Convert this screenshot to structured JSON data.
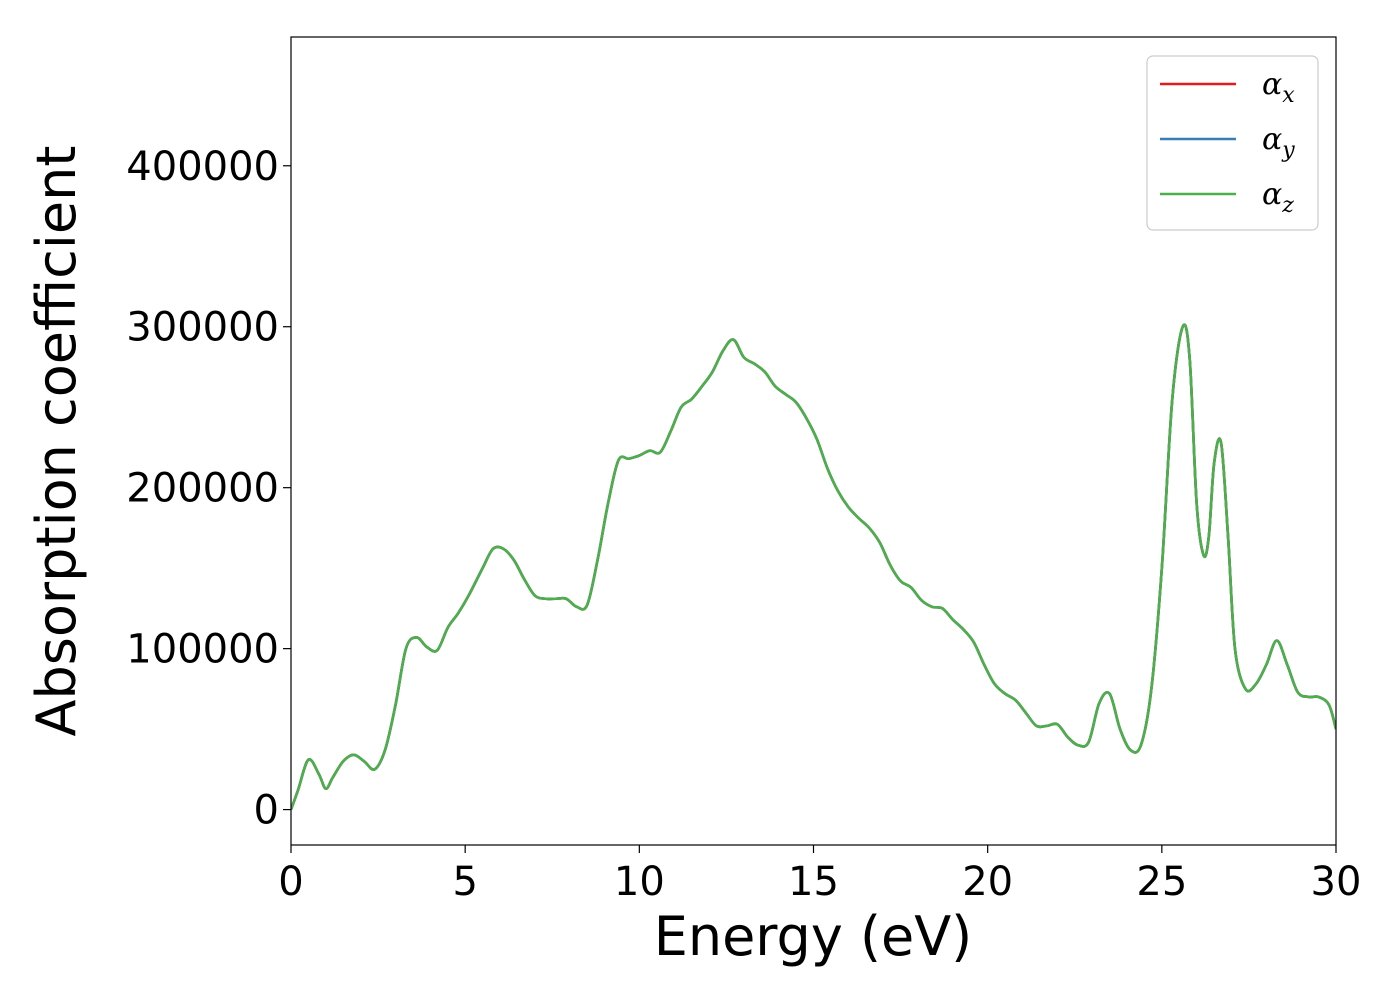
{
  "chart_data": {
    "type": "line",
    "title": "",
    "xlabel": "Energy (eV)",
    "ylabel": "Absorption coefficient",
    "xlim": [
      0,
      30
    ],
    "ylim": [
      -22000,
      480000
    ],
    "xticks": [
      0,
      5,
      10,
      15,
      20,
      25,
      30
    ],
    "yticks": [
      0,
      100000,
      200000,
      300000,
      400000
    ],
    "grid": false,
    "legend_position": "top-right",
    "series": [
      {
        "name": "α",
        "name_subscript": "x",
        "color": "#e41a1c",
        "x": [
          0,
          0.2,
          0.5,
          0.8,
          1.0,
          1.2,
          1.5,
          1.8,
          2.1,
          2.4,
          2.7,
          3.0,
          3.3,
          3.6,
          3.9,
          4.2,
          4.5,
          4.8,
          5.1,
          5.5,
          5.8,
          6.1,
          6.4,
          6.7,
          7.0,
          7.3,
          7.6,
          7.9,
          8.2,
          8.5,
          8.8,
          9.1,
          9.4,
          9.7,
          10.0,
          10.3,
          10.6,
          10.9,
          11.2,
          11.5,
          11.8,
          12.1,
          12.4,
          12.7,
          13.0,
          13.3,
          13.6,
          13.9,
          14.2,
          14.5,
          14.8,
          15.1,
          15.4,
          15.7,
          16.0,
          16.3,
          16.6,
          16.9,
          17.2,
          17.5,
          17.8,
          18.1,
          18.4,
          18.7,
          19.0,
          19.3,
          19.6,
          19.9,
          20.2,
          20.5,
          20.8,
          21.1,
          21.4,
          21.7,
          22.0,
          22.3,
          22.6,
          22.9,
          23.2,
          23.5,
          23.8,
          24.1,
          24.4,
          24.7,
          25.0,
          25.3,
          25.6,
          25.8,
          26.0,
          26.2,
          26.35,
          26.5,
          26.7,
          26.9,
          27.1,
          27.4,
          27.7,
          28.0,
          28.3,
          28.6,
          28.9,
          29.2,
          29.5,
          29.8,
          30.0
        ],
        "values": [
          0,
          12000,
          31000,
          22000,
          13000,
          20000,
          30000,
          34000,
          30000,
          25000,
          37000,
          65000,
          100000,
          107000,
          101000,
          99000,
          113000,
          122000,
          133000,
          150000,
          162000,
          162000,
          155000,
          143000,
          133000,
          131000,
          131000,
          131000,
          126000,
          127000,
          155000,
          190000,
          217000,
          218000,
          220000,
          223000,
          222000,
          235000,
          250000,
          255000,
          263000,
          272000,
          285000,
          292000,
          281000,
          277000,
          272000,
          263000,
          258000,
          253000,
          243000,
          230000,
          212000,
          198000,
          188000,
          181000,
          175000,
          166000,
          152000,
          142000,
          138000,
          130000,
          126000,
          125000,
          118000,
          112000,
          104000,
          90000,
          78000,
          72000,
          68000,
          60000,
          52000,
          52000,
          53000,
          45000,
          40000,
          42000,
          66000,
          72000,
          50000,
          37000,
          40000,
          75000,
          150000,
          255000,
          300000,
          280000,
          190000,
          158000,
          170000,
          215000,
          228000,
          170000,
          100000,
          75000,
          78000,
          90000,
          105000,
          90000,
          73000,
          70000,
          70000,
          65000,
          50000
        ]
      },
      {
        "name": "α",
        "name_subscript": "y",
        "color": "#377eb8",
        "same_as": "x"
      },
      {
        "name": "α",
        "name_subscript": "z",
        "color": "#4daf4a",
        "same_as": "x"
      }
    ]
  }
}
